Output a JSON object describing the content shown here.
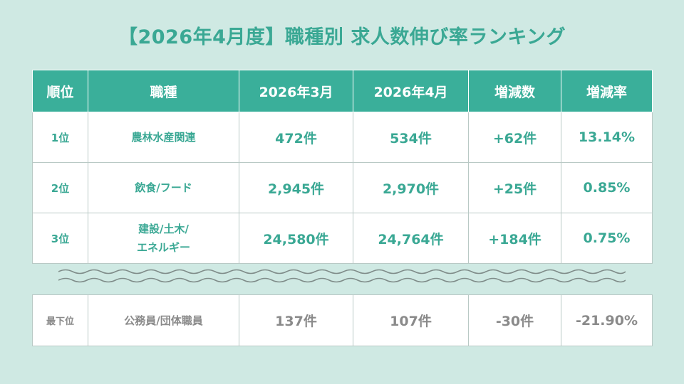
{
  "title": "【2026年4月度】職種別 求人数伸び率ランキング",
  "headers": [
    "順位",
    "職種",
    "2026年3月",
    "2026年4月",
    "増減数",
    "増減率"
  ],
  "rows": [
    {
      "rank": "1位",
      "job_line1": "農林水産関連",
      "job_line2": "",
      "mar": "472件",
      "apr": "534件",
      "diff": "+62件",
      "rate": "13.14%"
    },
    {
      "rank": "2位",
      "job_line1": "飲食/フード",
      "job_line2": "",
      "mar": "2,945件",
      "apr": "2,970件",
      "diff": "+25件",
      "rate": "0.85%"
    },
    {
      "rank": "3位",
      "job_line1": "建設/土木/",
      "job_line2": "エネルギー",
      "mar": "24,580件",
      "apr": "24,764件",
      "diff": "+184件",
      "rate": "0.75%"
    }
  ],
  "bottom": {
    "rank": "最下位",
    "job": "公務員/団体職員",
    "mar": "137件",
    "apr": "107件",
    "diff": "-30件",
    "rate": "-21.90%"
  },
  "colors": {
    "accent": "#3aaf9a",
    "background": "#cfe9e3",
    "muted": "#8a8a8a"
  }
}
